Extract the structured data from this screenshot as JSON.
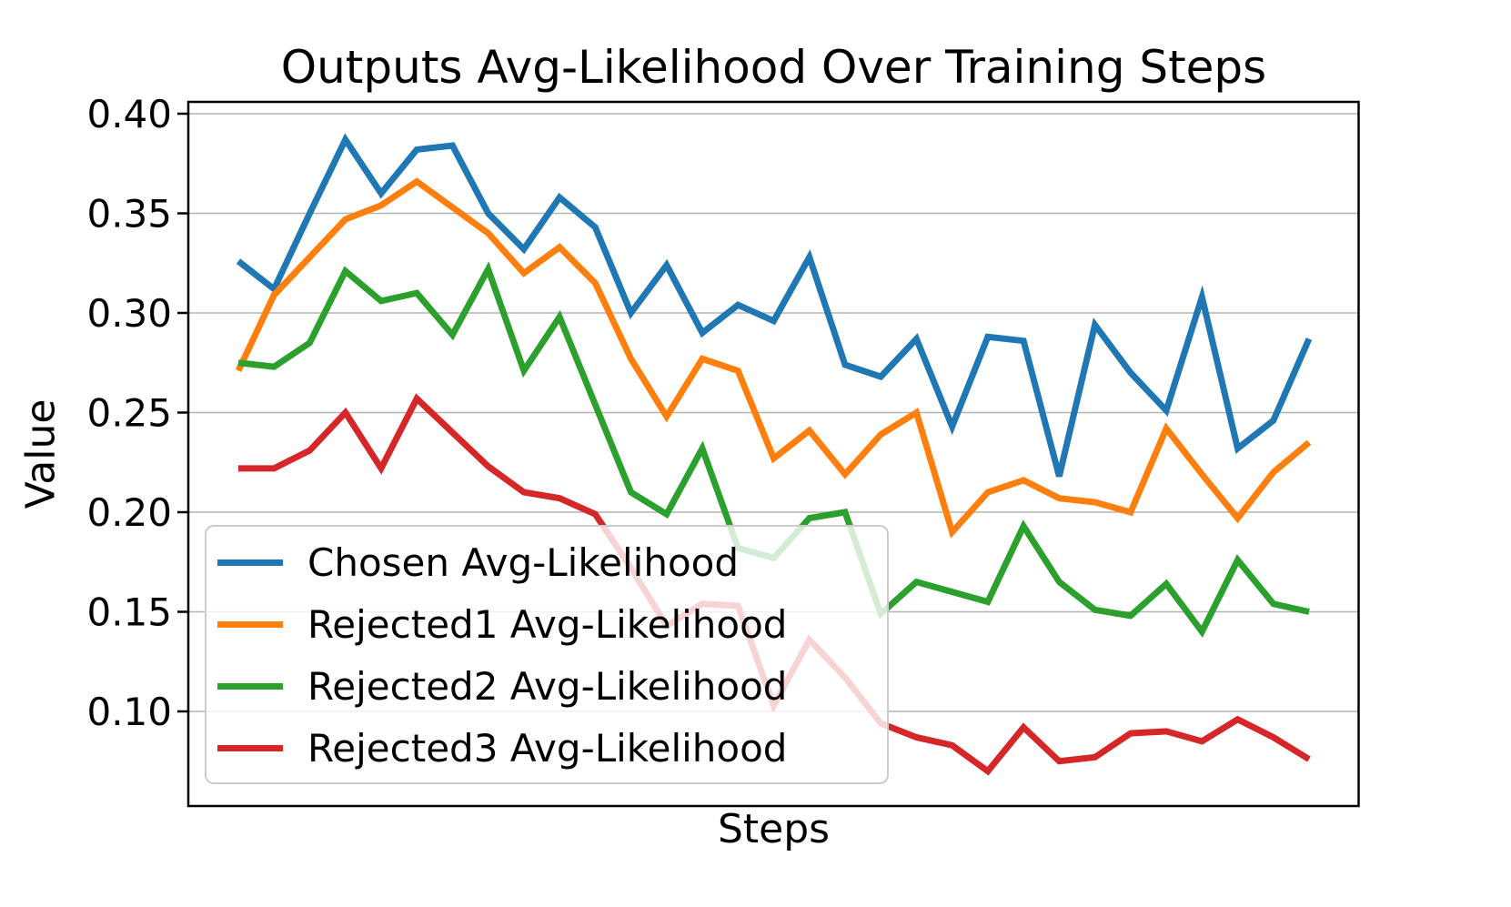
{
  "chart_data": {
    "type": "line",
    "title": "Outputs Avg-Likelihood Over Training Steps",
    "xlabel": "Steps",
    "ylabel": "Value",
    "num_points": 31,
    "x_tick_labels_shown": false,
    "grid": "horizontal",
    "ylim": [
      0.052,
      0.406
    ],
    "yticks": [
      "0.40",
      "0.35",
      "0.30",
      "0.25",
      "0.20",
      "0.15",
      "0.10"
    ],
    "ytick_values": [
      0.4,
      0.35,
      0.3,
      0.25,
      0.2,
      0.15,
      0.1
    ],
    "legend_position": "lower-left",
    "series": [
      {
        "name": "Chosen Avg-Likelihood",
        "color": "#1f77b4",
        "values": [
          0.326,
          0.312,
          0.35,
          0.387,
          0.36,
          0.382,
          0.384,
          0.35,
          0.332,
          0.358,
          0.343,
          0.3,
          0.324,
          0.29,
          0.304,
          0.296,
          0.328,
          0.274,
          0.268,
          0.287,
          0.243,
          0.288,
          0.286,
          0.218,
          0.294,
          0.27,
          0.251,
          0.308,
          0.232,
          0.246,
          0.287
        ]
      },
      {
        "name": "Rejected1 Avg-Likelihood",
        "color": "#ff7f0e",
        "values": [
          0.271,
          0.309,
          0.328,
          0.347,
          0.354,
          0.366,
          0.353,
          0.34,
          0.32,
          0.333,
          0.315,
          0.277,
          0.248,
          0.277,
          0.271,
          0.227,
          0.241,
          0.219,
          0.239,
          0.25,
          0.19,
          0.21,
          0.216,
          0.207,
          0.205,
          0.2,
          0.242,
          0.219,
          0.197,
          0.22,
          0.235
        ]
      },
      {
        "name": "Rejected2 Avg-Likelihood",
        "color": "#2ca02c",
        "values": [
          0.275,
          0.273,
          0.285,
          0.321,
          0.306,
          0.31,
          0.289,
          0.322,
          0.271,
          0.298,
          0.254,
          0.21,
          0.199,
          0.232,
          0.182,
          0.177,
          0.197,
          0.2,
          0.149,
          0.165,
          0.16,
          0.155,
          0.193,
          0.165,
          0.151,
          0.148,
          0.164,
          0.14,
          0.176,
          0.154,
          0.15
        ]
      },
      {
        "name": "Rejected3 Avg-Likelihood",
        "color": "#d62728",
        "values": [
          0.222,
          0.222,
          0.231,
          0.25,
          0.222,
          0.257,
          0.24,
          0.223,
          0.21,
          0.207,
          0.199,
          0.172,
          0.143,
          0.154,
          0.153,
          0.103,
          0.136,
          0.117,
          0.094,
          0.087,
          0.083,
          0.07,
          0.092,
          0.075,
          0.077,
          0.089,
          0.09,
          0.085,
          0.096,
          0.087,
          0.076
        ]
      }
    ]
  }
}
